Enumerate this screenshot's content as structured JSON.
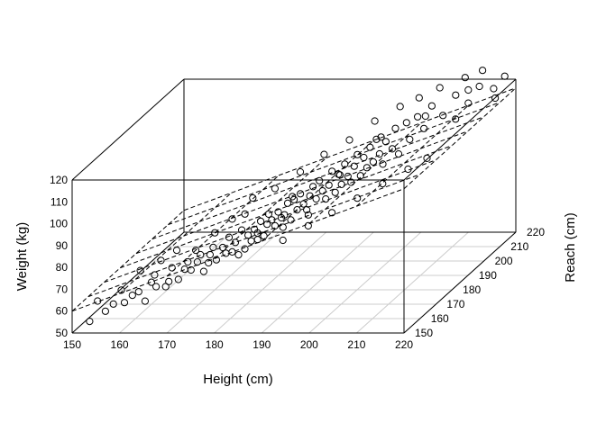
{
  "chart_data": {
    "type": "scatter",
    "projection": "3d-scatter-with-regression-plane",
    "xlabel": "Height (cm)",
    "ylabel": "Reach (cm)",
    "zlabel": "Weight (kg)",
    "xlim": [
      150,
      220
    ],
    "ylim": [
      150,
      220
    ],
    "zlim": [
      50,
      120
    ],
    "x_ticks": [
      "150",
      "160",
      "170",
      "180",
      "190",
      "200",
      "210",
      "220"
    ],
    "y_ticks": [
      "150",
      "160",
      "170",
      "180",
      "190",
      "200",
      "210",
      "220"
    ],
    "z_ticks": [
      "50",
      "60",
      "70",
      "80",
      "90",
      "100",
      "110",
      "120"
    ],
    "grid": true,
    "box": true,
    "regression_plane": {
      "intercept": -60.0,
      "height_coef": 0.8,
      "reach_coef": 0.0,
      "line_style": "dashed"
    },
    "point_style": {
      "shape": "open-circle",
      "color": "#000000"
    },
    "series": [
      {
        "points": [
          [
            152,
            155,
            52
          ],
          [
            153,
            157,
            60
          ],
          [
            155,
            156,
            56
          ],
          [
            156,
            158,
            58
          ],
          [
            157,
            160,
            63
          ],
          [
            158,
            159,
            58
          ],
          [
            159,
            161,
            60
          ],
          [
            160,
            162,
            61
          ],
          [
            161,
            163,
            56
          ],
          [
            162,
            164,
            64
          ],
          [
            162,
            166,
            66
          ],
          [
            163,
            164,
            62
          ],
          [
            164,
            167,
            60
          ],
          [
            165,
            168,
            68
          ],
          [
            165,
            166,
            63
          ],
          [
            166,
            169,
            62
          ],
          [
            167,
            170,
            66
          ],
          [
            168,
            169,
            70
          ],
          [
            168,
            171,
            65
          ],
          [
            169,
            172,
            68
          ],
          [
            170,
            171,
            72
          ],
          [
            170,
            173,
            63
          ],
          [
            171,
            174,
            70
          ],
          [
            172,
            173,
            74
          ],
          [
            172,
            175,
            67
          ],
          [
            173,
            176,
            72
          ],
          [
            174,
            175,
            70
          ],
          [
            174,
            177,
            76
          ],
          [
            175,
            178,
            73
          ],
          [
            176,
            177,
            68
          ],
          [
            176,
            179,
            78
          ],
          [
            177,
            180,
            75
          ],
          [
            177,
            178,
            70
          ],
          [
            178,
            181,
            77
          ],
          [
            178,
            179,
            73
          ],
          [
            179,
            182,
            80
          ],
          [
            179,
            180,
            76
          ],
          [
            180,
            183,
            78
          ],
          [
            180,
            181,
            74
          ],
          [
            180,
            184,
            82
          ],
          [
            181,
            183,
            80
          ],
          [
            181,
            185,
            76
          ],
          [
            182,
            184,
            83
          ],
          [
            182,
            186,
            79
          ],
          [
            183,
            185,
            81
          ],
          [
            183,
            187,
            85
          ],
          [
            184,
            186,
            78
          ],
          [
            184,
            188,
            86
          ],
          [
            185,
            187,
            82
          ],
          [
            185,
            189,
            88
          ],
          [
            186,
            188,
            84
          ],
          [
            186,
            190,
            80
          ],
          [
            187,
            189,
            87
          ],
          [
            187,
            191,
            90
          ],
          [
            188,
            190,
            85
          ],
          [
            188,
            192,
            92
          ],
          [
            189,
            191,
            88
          ],
          [
            189,
            193,
            83
          ],
          [
            190,
            192,
            90
          ],
          [
            190,
            194,
            95
          ],
          [
            191,
            193,
            86
          ],
          [
            191,
            195,
            93
          ],
          [
            192,
            194,
            89
          ],
          [
            192,
            196,
            97
          ],
          [
            193,
            195,
            92
          ],
          [
            193,
            197,
            88
          ],
          [
            194,
            196,
            96
          ],
          [
            194,
            198,
            100
          ],
          [
            195,
            197,
            91
          ],
          [
            195,
            199,
            98
          ],
          [
            196,
            198,
            94
          ],
          [
            196,
            200,
            102
          ],
          [
            197,
            199,
            96
          ],
          [
            197,
            201,
            105
          ],
          [
            198,
            200,
            99
          ],
          [
            198,
            202,
            93
          ],
          [
            199,
            201,
            104
          ],
          [
            200,
            202,
            100
          ],
          [
            200,
            204,
            108
          ],
          [
            201,
            203,
            97
          ],
          [
            202,
            205,
            110
          ],
          [
            203,
            204,
            103
          ],
          [
            204,
            206,
            112
          ],
          [
            205,
            207,
            106
          ],
          [
            206,
            209,
            115
          ],
          [
            208,
            210,
            110
          ],
          [
            210,
            212,
            118
          ],
          [
            212,
            214,
            113
          ],
          [
            214,
            215,
            120
          ],
          [
            216,
            218,
            117
          ],
          [
            218,
            219,
            122
          ],
          [
            175,
            176,
            85
          ],
          [
            178,
            180,
            92
          ],
          [
            182,
            182,
            95
          ],
          [
            186,
            186,
            100
          ],
          [
            190,
            189,
            106
          ],
          [
            194,
            193,
            110
          ],
          [
            198,
            197,
            116
          ],
          [
            202,
            201,
            120
          ],
          [
            205,
            204,
            122
          ],
          [
            208,
            208,
            124
          ],
          [
            212,
            212,
            126
          ],
          [
            215,
            214,
            128
          ],
          [
            160,
            163,
            70
          ],
          [
            166,
            168,
            76
          ],
          [
            172,
            174,
            80
          ],
          [
            184,
            181,
            72
          ],
          [
            188,
            185,
            76
          ],
          [
            192,
            188,
            80
          ],
          [
            196,
            192,
            84
          ],
          [
            200,
            196,
            88
          ],
          [
            204,
            200,
            92
          ],
          [
            207,
            203,
            95
          ],
          [
            170,
            176,
            65
          ],
          [
            174,
            179,
            68
          ],
          [
            178,
            183,
            71
          ],
          [
            182,
            187,
            74
          ],
          [
            186,
            191,
            77
          ],
          [
            163,
            167,
            72
          ],
          [
            169,
            171,
            74
          ],
          [
            176,
            181,
            84
          ],
          [
            185,
            184,
            90
          ],
          [
            193,
            190,
            96
          ],
          [
            199,
            198,
            108
          ],
          [
            206,
            205,
            113
          ],
          [
            211,
            209,
            109
          ],
          [
            213,
            211,
            121
          ],
          [
            217,
            216,
            114
          ]
        ]
      }
    ]
  }
}
